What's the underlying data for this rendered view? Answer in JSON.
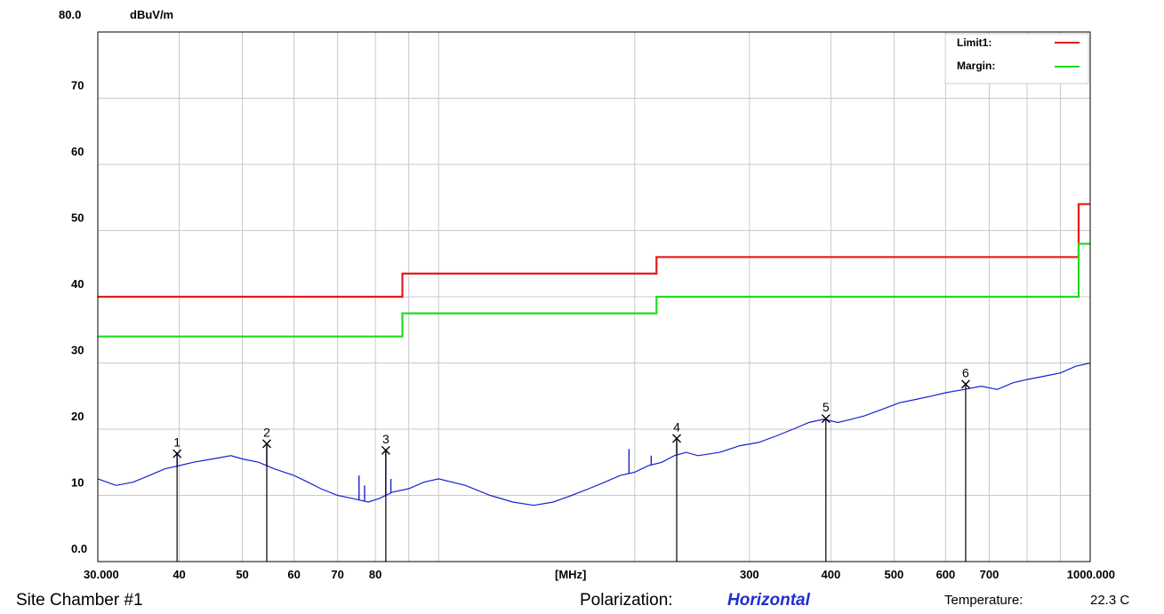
{
  "chart_data": {
    "type": "line",
    "y_unit": "dBuV/m",
    "x_unit": "[MHz]",
    "x_scale": "log",
    "xlim": [
      30,
      1000
    ],
    "ylim": [
      0,
      80
    ],
    "y_top_label": "80.0",
    "y_ticks": [
      "0.0",
      "10",
      "20",
      "30",
      "40",
      "50",
      "60",
      "70"
    ],
    "x_tick_labels": [
      {
        "value": 30,
        "label": "30.000"
      },
      {
        "value": 40,
        "label": "40"
      },
      {
        "value": 50,
        "label": "50"
      },
      {
        "value": 60,
        "label": "60"
      },
      {
        "value": 70,
        "label": "70"
      },
      {
        "value": 80,
        "label": "80"
      },
      {
        "value": 300,
        "label": "300"
      },
      {
        "value": 400,
        "label": "400"
      },
      {
        "value": 500,
        "label": "500"
      },
      {
        "value": 600,
        "label": "600"
      },
      {
        "value": 700,
        "label": "700"
      },
      {
        "value": 1000,
        "label": "1000.000"
      }
    ],
    "x_gridlines": [
      30,
      40,
      50,
      60,
      70,
      80,
      90,
      100,
      200,
      300,
      400,
      500,
      600,
      700,
      800,
      900,
      1000
    ],
    "grid": true,
    "legend_position": "top-right",
    "legend": [
      {
        "label": "Limit1:",
        "color": "#e8191a"
      },
      {
        "label": "Margin:",
        "color": "#1fdc1f"
      }
    ],
    "series": [
      {
        "name": "Limit1:",
        "color": "#e8191a",
        "points": [
          [
            30,
            40
          ],
          [
            88,
            40
          ],
          [
            88,
            43.5
          ],
          [
            216,
            43.5
          ],
          [
            216,
            46
          ],
          [
            960,
            46
          ],
          [
            960,
            54
          ],
          [
            1000,
            54
          ]
        ]
      },
      {
        "name": "Margin:",
        "color": "#1fdc1f",
        "points": [
          [
            30,
            34
          ],
          [
            88,
            34
          ],
          [
            88,
            37.5
          ],
          [
            216,
            37.5
          ],
          [
            216,
            40
          ],
          [
            960,
            40
          ],
          [
            960,
            48
          ],
          [
            1000,
            48
          ]
        ]
      },
      {
        "color": "#1a1fd0",
        "points": [
          [
            30,
            12.5
          ],
          [
            32,
            11.5
          ],
          [
            34,
            12
          ],
          [
            36,
            13
          ],
          [
            38,
            14
          ],
          [
            40,
            14.5
          ],
          [
            42,
            15
          ],
          [
            45,
            15.5
          ],
          [
            48,
            16
          ],
          [
            50,
            15.5
          ],
          [
            53,
            15
          ],
          [
            56,
            14
          ],
          [
            60,
            13
          ],
          [
            63,
            12
          ],
          [
            66,
            11
          ],
          [
            70,
            10
          ],
          [
            74,
            9.5
          ],
          [
            78,
            9
          ],
          [
            81,
            9.5
          ],
          [
            85,
            10.5
          ],
          [
            90,
            11
          ],
          [
            95,
            12
          ],
          [
            100,
            12.5
          ],
          [
            110,
            11.5
          ],
          [
            120,
            10
          ],
          [
            130,
            9
          ],
          [
            140,
            8.5
          ],
          [
            150,
            9
          ],
          [
            160,
            10
          ],
          [
            170,
            11
          ],
          [
            180,
            12
          ],
          [
            190,
            13
          ],
          [
            200,
            13.5
          ],
          [
            210,
            14.5
          ],
          [
            220,
            15
          ],
          [
            230,
            16
          ],
          [
            240,
            16.5
          ],
          [
            250,
            16
          ],
          [
            270,
            16.5
          ],
          [
            290,
            17.5
          ],
          [
            310,
            18
          ],
          [
            330,
            19
          ],
          [
            350,
            20
          ],
          [
            370,
            21
          ],
          [
            390,
            21.5
          ],
          [
            410,
            21
          ],
          [
            430,
            21.5
          ],
          [
            450,
            22
          ],
          [
            480,
            23
          ],
          [
            510,
            24
          ],
          [
            540,
            24.5
          ],
          [
            570,
            25
          ],
          [
            600,
            25.5
          ],
          [
            640,
            26
          ],
          [
            680,
            26.5
          ],
          [
            720,
            26
          ],
          [
            760,
            27
          ],
          [
            800,
            27.5
          ],
          [
            850,
            28
          ],
          [
            900,
            28.5
          ],
          [
            950,
            29.5
          ],
          [
            1000,
            30
          ]
        ]
      }
    ],
    "spurs": [
      [
        39.7,
        16.5
      ],
      [
        54.5,
        17.5
      ],
      [
        75.5,
        13
      ],
      [
        77,
        11.5
      ],
      [
        83,
        17
      ],
      [
        84.5,
        12.5
      ],
      [
        196,
        17
      ],
      [
        212,
        16
      ],
      [
        232,
        18.5
      ]
    ],
    "markers": [
      {
        "label": "1",
        "x": 39.7,
        "y": 16.3
      },
      {
        "label": "2",
        "x": 54.5,
        "y": 17.8
      },
      {
        "label": "3",
        "x": 83,
        "y": 16.8
      },
      {
        "label": "4",
        "x": 232,
        "y": 18.6
      },
      {
        "label": "5",
        "x": 393,
        "y": 21.6
      },
      {
        "label": "6",
        "x": 644,
        "y": 26.8
      }
    ]
  },
  "footer": {
    "site": "Site Chamber #1",
    "polarization_label": "Polarization:",
    "polarization_value": "Horizontal",
    "temperature_label": "Temperature:",
    "temperature_value": "22.3 C"
  }
}
